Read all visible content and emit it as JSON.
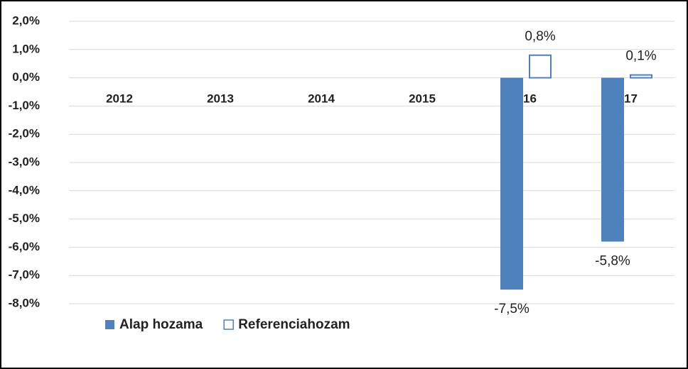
{
  "chart_data": {
    "type": "bar",
    "categories": [
      "2012",
      "2013",
      "2014",
      "2015",
      "2016",
      "2017"
    ],
    "series": [
      {
        "name": "Alap hozama",
        "color": "#4f81bd",
        "fill": true,
        "values": [
          null,
          null,
          null,
          null,
          -7.5,
          -5.8
        ],
        "value_labels": [
          null,
          null,
          null,
          null,
          "-7,5%",
          "-5,8%"
        ]
      },
      {
        "name": "Referenciahozam",
        "color": "#4f81bd",
        "fill": false,
        "values": [
          null,
          null,
          null,
          null,
          0.8,
          0.1
        ],
        "value_labels": [
          null,
          null,
          null,
          null,
          "0,8%",
          "0,1%"
        ]
      }
    ],
    "ylim": [
      -8,
      2
    ],
    "yticks": [
      {
        "value": 2,
        "label": "2,0%"
      },
      {
        "value": 1,
        "label": "1,0%"
      },
      {
        "value": 0,
        "label": "0,0%"
      },
      {
        "value": -1,
        "label": "-1,0%"
      },
      {
        "value": -2,
        "label": "-2,0%"
      },
      {
        "value": -3,
        "label": "-3,0%"
      },
      {
        "value": -4,
        "label": "-4,0%"
      },
      {
        "value": -5,
        "label": "-5,0%"
      },
      {
        "value": -6,
        "label": "-6,0%"
      },
      {
        "value": -7,
        "label": "-7,0%"
      },
      {
        "value": -8,
        "label": "-8,0%"
      }
    ],
    "grid": true,
    "legend": "bottom-left"
  }
}
